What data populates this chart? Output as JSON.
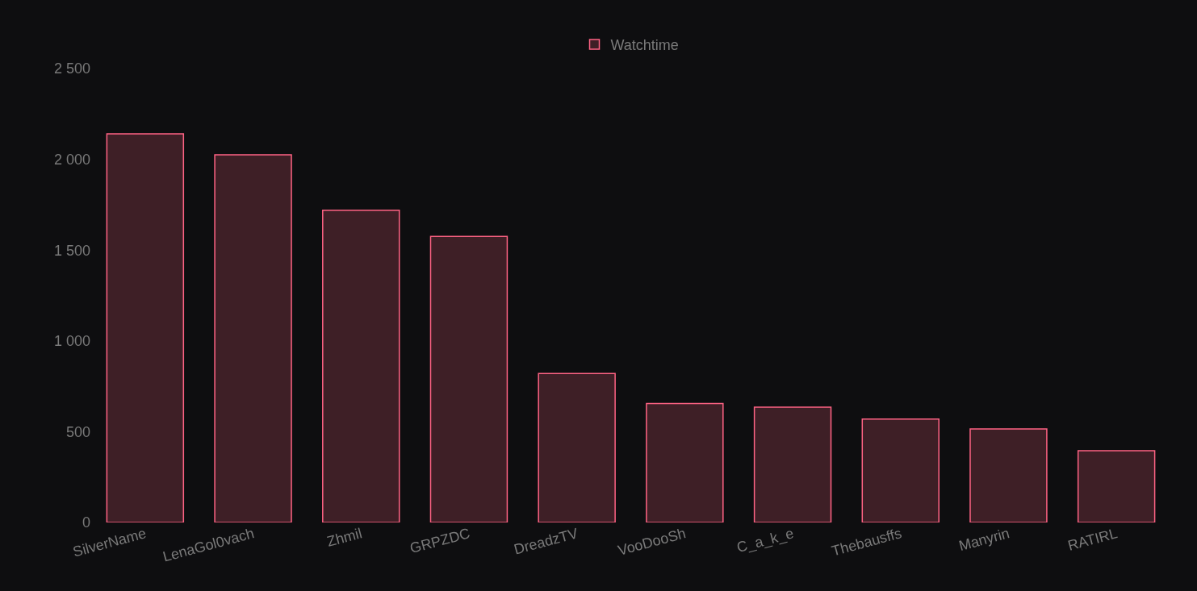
{
  "chart_data": {
    "type": "bar",
    "categories": [
      "SilverName",
      "LenaGol0vach",
      "Zhmil",
      "GRPZDC",
      "DreadzTV",
      "VooDooSh",
      "C_a_k_e",
      "Thebausffs",
      "Manyrin",
      "RATIRL"
    ],
    "series": [
      {
        "name": "Watchtime",
        "color": "#ff6384",
        "values": [
          2140,
          2025,
          1720,
          1575,
          820,
          655,
          635,
          570,
          515,
          395
        ]
      }
    ],
    "ylim": [
      0,
      2500
    ],
    "yticks": [
      0,
      500,
      {
        "value": 1000,
        "label": "1 000"
      },
      {
        "value": 1500,
        "label": "1 500"
      },
      {
        "value": 2000,
        "label": "2 000"
      },
      {
        "value": 2500,
        "label": "2 500"
      }
    ],
    "grid": false,
    "legend": "top"
  }
}
